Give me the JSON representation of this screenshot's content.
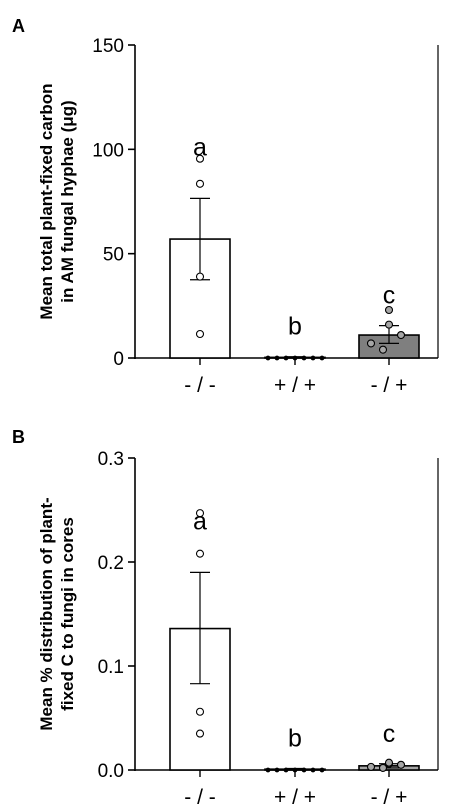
{
  "chart_data": [
    {
      "type": "bar",
      "panel": "A",
      "ylabel_lines": [
        "Mean total plant-fixed carbon",
        "in AM fungal hyphae (μg)"
      ],
      "ylim": [
        0,
        150
      ],
      "yticks": [
        "0",
        "50",
        "100",
        "150"
      ],
      "ytick_values": [
        0,
        50,
        100,
        150
      ],
      "categories": [
        "- / -",
        "+ / +",
        "- / +"
      ],
      "values": [
        57,
        0.3,
        11
      ],
      "error": [
        [
          37.5,
          76.5
        ],
        [
          0,
          0.6
        ],
        [
          7,
          15.5
        ]
      ],
      "letters": [
        "a",
        "b",
        "c"
      ],
      "points": [
        [
          95.5,
          83.5,
          39,
          11.5
        ],
        [
          0,
          0,
          0,
          0,
          0,
          0,
          0
        ],
        [
          23,
          16,
          11,
          7,
          4
        ]
      ],
      "bar_fill": [
        "#ffffff",
        "#ffffff",
        "#7f7f7f"
      ],
      "point_fill": [
        "#ffffff",
        "#000000",
        "#a6a6a6"
      ]
    },
    {
      "type": "bar",
      "panel": "B",
      "ylabel_lines": [
        "Mean % distribution of plant-",
        "fixed C to fungi in cores"
      ],
      "ylim": [
        0,
        0.3
      ],
      "yticks": [
        "0.0",
        "0.1",
        "0.2",
        "0.3"
      ],
      "ytick_values": [
        0,
        0.1,
        0.2,
        0.3
      ],
      "categories": [
        "- / -",
        "+ / +",
        "- / +"
      ],
      "values": [
        0.136,
        0.0008,
        0.004
      ],
      "error": [
        [
          0.083,
          0.19
        ],
        [
          0,
          0.0015
        ],
        [
          0.002,
          0.006
        ]
      ],
      "letters": [
        "a",
        "b",
        "c"
      ],
      "points": [
        [
          0.247,
          0.208,
          0.056,
          0.035
        ],
        [
          0,
          0,
          0,
          0,
          0,
          0,
          0
        ],
        [
          0.006,
          0.007,
          0.005,
          0.003,
          0.002
        ]
      ],
      "bar_fill": [
        "#ffffff",
        "#ffffff",
        "#a6a6a6"
      ],
      "point_fill": [
        "#ffffff",
        "#000000",
        "#a6a6a6"
      ]
    }
  ]
}
